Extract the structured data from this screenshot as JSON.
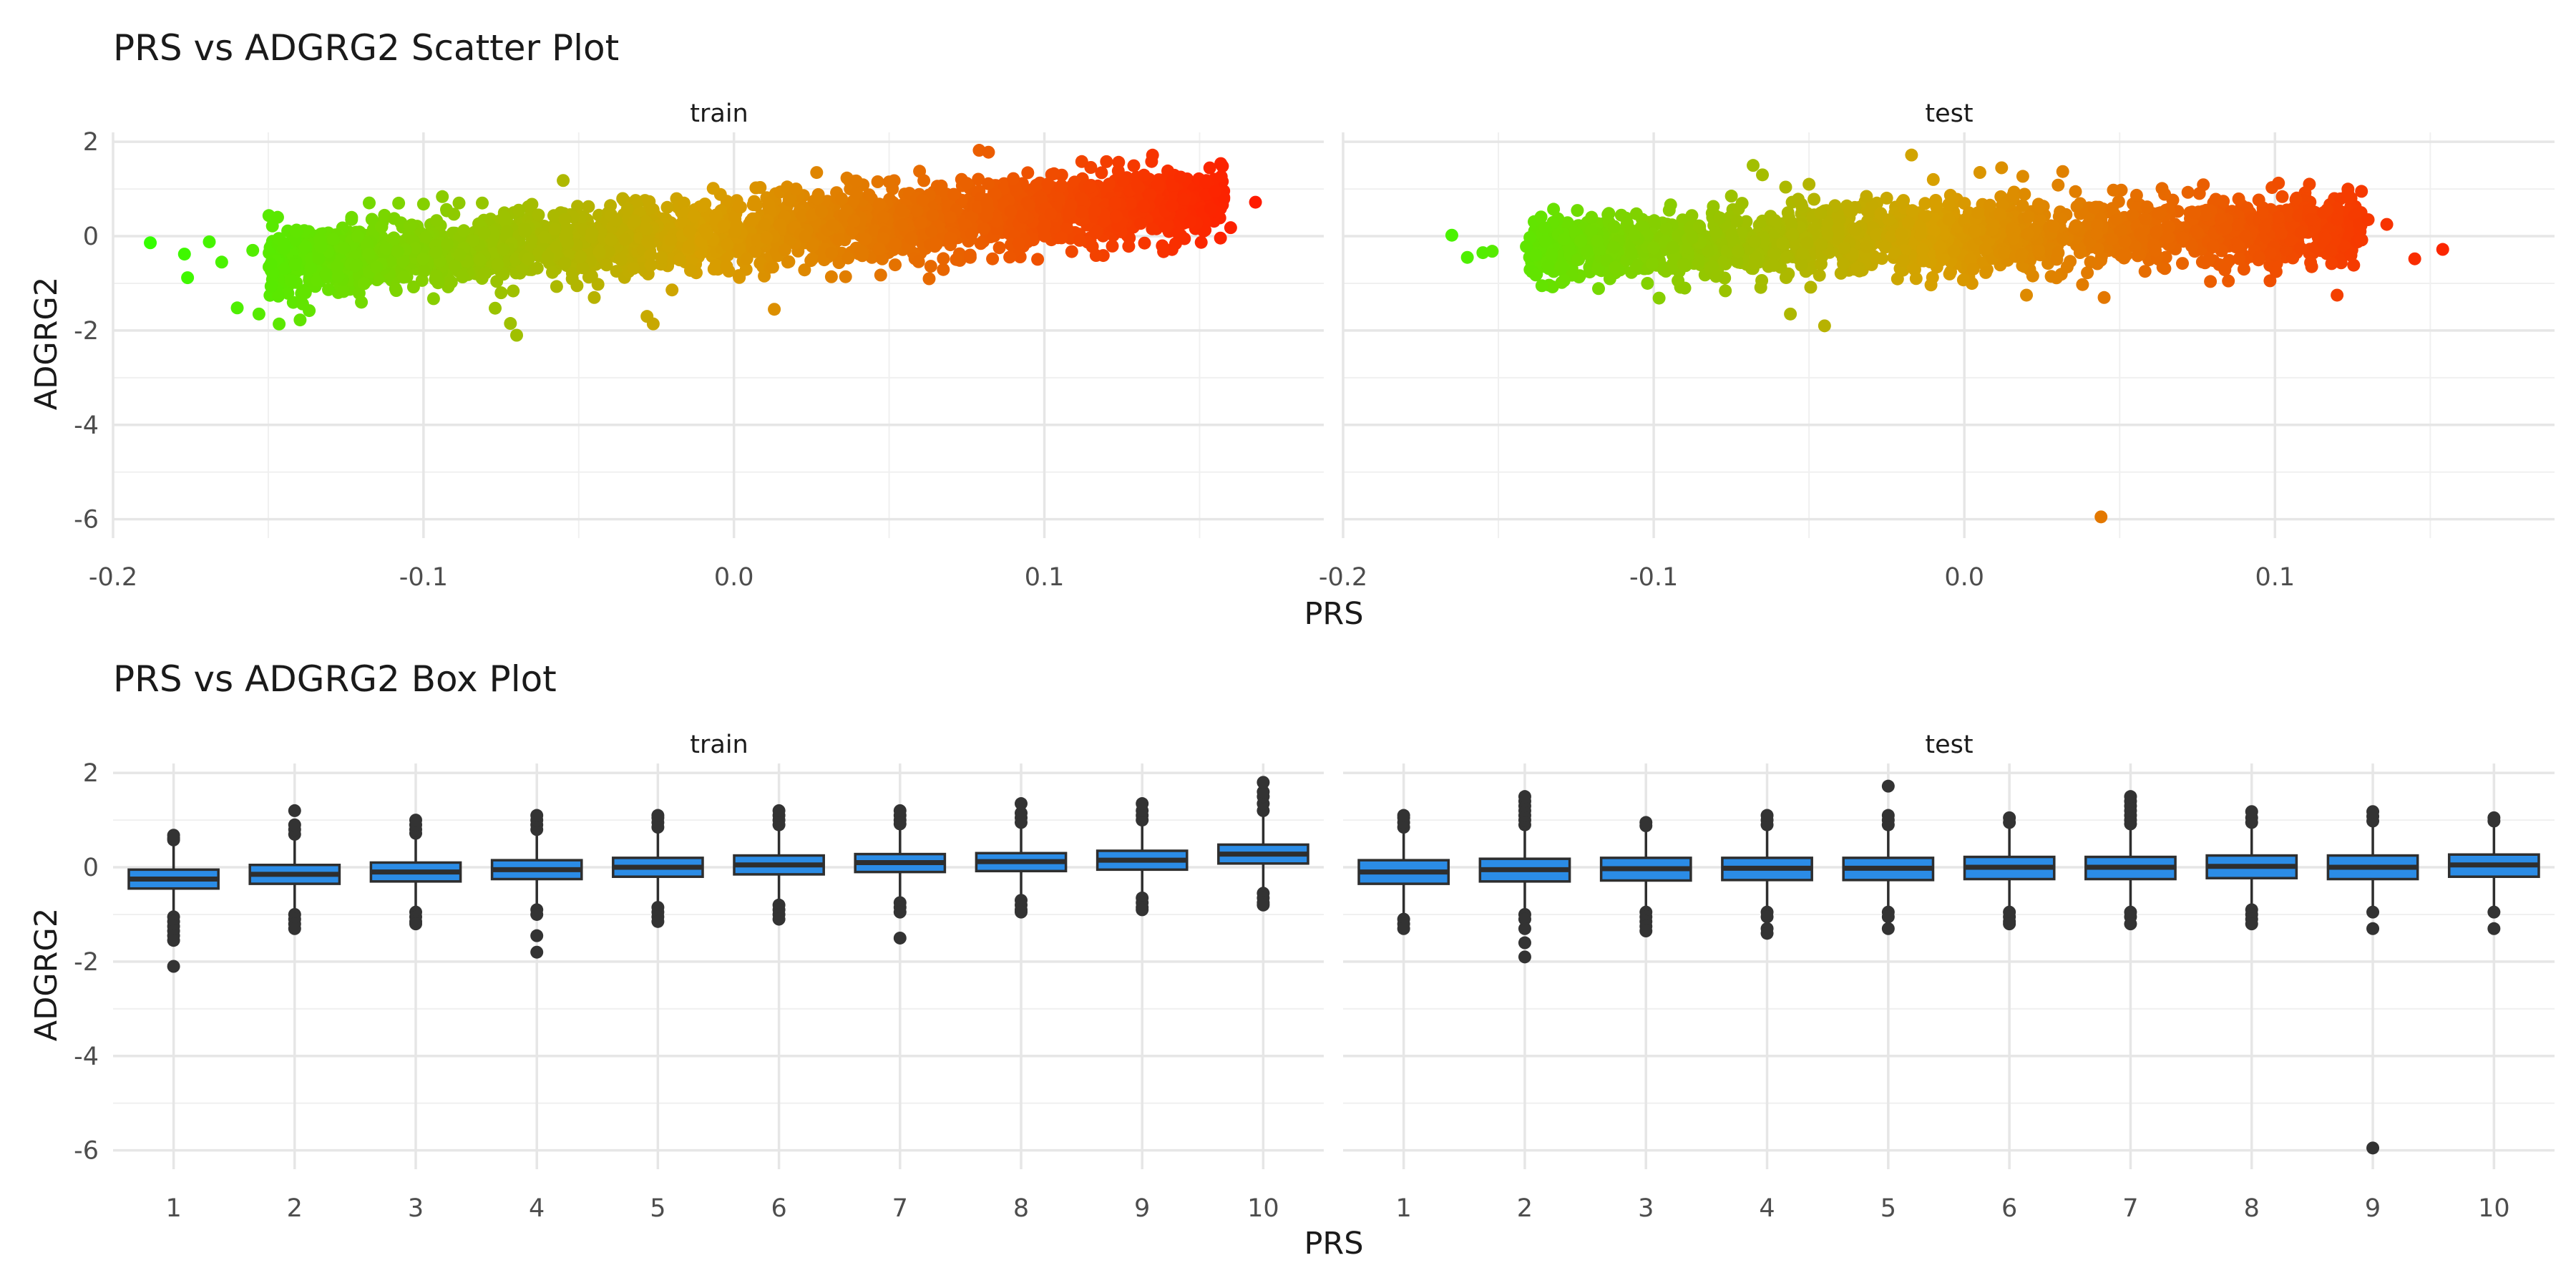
{
  "chart_data": [
    {
      "type": "scatter",
      "title": "PRS vs ADGRG2 Scatter Plot",
      "xlabel": "PRS",
      "ylabel": "ADGRG2",
      "facets": [
        "train",
        "test"
      ],
      "xlim": [
        -0.2,
        0.19
      ],
      "ylim": [
        -6.4,
        2.2
      ],
      "x_ticks": [
        -0.2,
        -0.1,
        0.0,
        0.1
      ],
      "x_tick_labels": [
        "-0.2",
        "-0.1",
        "0.0",
        "0.1"
      ],
      "y_ticks": [
        -6,
        -4,
        -2,
        0,
        2
      ],
      "y_tick_labels": [
        "-6",
        "-4",
        "-2",
        "0",
        "2"
      ],
      "grid": true,
      "legend": "none",
      "color_low": "#33ff00",
      "color_mid": "#d7a000",
      "color_high": "#ff1a00",
      "color_range": [
        -0.19,
        0.17
      ],
      "panels": [
        {
          "facet": "train",
          "points": [
            [
              -0.188,
              -0.14
            ],
            [
              -0.177,
              -0.38
            ],
            [
              -0.176,
              -0.88
            ],
            [
              -0.169,
              -0.12
            ],
            [
              -0.165,
              -0.55
            ],
            [
              -0.16,
              -1.52
            ],
            [
              -0.155,
              -0.3
            ],
            [
              -0.153,
              -1.65
            ],
            [
              -0.147,
              0.4
            ],
            [
              -0.145,
              -0.15
            ],
            [
              -0.12,
              -1.4
            ],
            [
              -0.108,
              0.7
            ],
            [
              -0.1,
              0.68
            ],
            [
              -0.075,
              -1.2
            ],
            [
              -0.072,
              -1.85
            ],
            [
              -0.07,
              -2.1
            ],
            [
              -0.055,
              1.18
            ],
            [
              -0.045,
              -1.3
            ],
            [
              -0.028,
              -1.7
            ],
            [
              -0.026,
              -1.86
            ],
            [
              0.013,
              -1.55
            ],
            [
              0.02,
              1.0
            ],
            [
              0.05,
              1.15
            ],
            [
              0.075,
              1.12
            ],
            [
              0.079,
              1.82
            ],
            [
              0.082,
              1.78
            ],
            [
              0.09,
              1.22
            ],
            [
              0.12,
              1.58
            ],
            [
              0.145,
              0.78
            ],
            [
              0.155,
              0.95
            ],
            [
              0.16,
              0.18
            ],
            [
              0.168,
              0.72
            ]
          ],
          "band": {
            "x_from": -0.15,
            "x_to": 0.158,
            "center_at_left": -0.58,
            "center_slope": 4.3,
            "spread": 0.82,
            "count": 2600
          }
        },
        {
          "facet": "test",
          "points": [
            [
              -0.165,
              0.02
            ],
            [
              -0.16,
              -0.45
            ],
            [
              -0.155,
              -0.35
            ],
            [
              -0.152,
              -0.32
            ],
            [
              -0.141,
              -0.22
            ],
            [
              -0.138,
              -0.4
            ],
            [
              -0.136,
              -1.05
            ],
            [
              -0.13,
              -0.65
            ],
            [
              -0.12,
              0.4
            ],
            [
              -0.102,
              -1.0
            ],
            [
              -0.095,
              0.55
            ],
            [
              -0.09,
              -1.1
            ],
            [
              -0.075,
              0.85
            ],
            [
              -0.068,
              1.5
            ],
            [
              -0.065,
              1.3
            ],
            [
              -0.056,
              -1.65
            ],
            [
              -0.05,
              1.1
            ],
            [
              -0.045,
              -1.9
            ],
            [
              -0.02,
              0.72
            ],
            [
              -0.017,
              1.72
            ],
            [
              -0.01,
              1.2
            ],
            [
              0.005,
              1.35
            ],
            [
              0.012,
              1.45
            ],
            [
              0.02,
              -1.25
            ],
            [
              0.045,
              -1.3
            ],
            [
              0.044,
              -5.95
            ],
            [
              0.085,
              -0.95
            ],
            [
              0.09,
              -0.7
            ],
            [
              0.118,
              -0.3
            ],
            [
              0.12,
              -1.25
            ],
            [
              0.13,
              0.35
            ],
            [
              0.136,
              0.25
            ],
            [
              0.145,
              -0.48
            ],
            [
              0.154,
              -0.28
            ]
          ],
          "band": {
            "x_from": -0.14,
            "x_to": 0.128,
            "center_at_left": -0.28,
            "center_slope": 1.8,
            "spread": 0.78,
            "count": 2000
          }
        }
      ]
    },
    {
      "type": "box",
      "title": "PRS vs ADGRG2 Box Plot",
      "xlabel": "PRS",
      "ylabel": "ADGRG2",
      "facets": [
        "train",
        "test"
      ],
      "categories": [
        "1",
        "2",
        "3",
        "4",
        "5",
        "6",
        "7",
        "8",
        "9",
        "10"
      ],
      "ylim": [
        -6.4,
        2.2
      ],
      "y_ticks": [
        -6,
        -4,
        -2,
        0,
        2
      ],
      "y_tick_labels": [
        "-6",
        "-4",
        "-2",
        "0",
        "2"
      ],
      "grid": true,
      "legend": "none",
      "box_fill": "#2b8ce6",
      "box_line": "#2e2e2e",
      "outlier_color": "#333333",
      "panels": [
        {
          "facet": "train",
          "boxes": [
            {
              "category": "1",
              "lower_whisker": -1.0,
              "q1": -0.45,
              "median": -0.25,
              "q3": -0.05,
              "upper_whisker": 0.55,
              "outliers": [
                0.58,
                0.62,
                0.68,
                -1.05,
                -1.15,
                -1.25,
                -1.35,
                -1.45,
                -1.55,
                -2.1
              ]
            },
            {
              "category": "2",
              "lower_whisker": -0.95,
              "q1": -0.35,
              "median": -0.15,
              "q3": 0.05,
              "upper_whisker": 0.65,
              "outliers": [
                0.7,
                0.8,
                0.9,
                1.2,
                -1.0,
                -1.1,
                -1.2,
                -1.3
              ]
            },
            {
              "category": "3",
              "lower_whisker": -0.9,
              "q1": -0.3,
              "median": -0.1,
              "q3": 0.1,
              "upper_whisker": 0.7,
              "outliers": [
                0.72,
                0.8,
                0.9,
                1.0,
                -0.95,
                -1.05,
                -1.15,
                -1.2
              ]
            },
            {
              "category": "4",
              "lower_whisker": -0.85,
              "q1": -0.25,
              "median": -0.05,
              "q3": 0.15,
              "upper_whisker": 0.75,
              "outliers": [
                0.8,
                0.9,
                1.0,
                1.1,
                -0.9,
                -1.0,
                -1.45,
                -1.8
              ]
            },
            {
              "category": "5",
              "lower_whisker": -0.8,
              "q1": -0.2,
              "median": 0.0,
              "q3": 0.2,
              "upper_whisker": 0.8,
              "outliers": [
                0.85,
                0.95,
                1.05,
                1.1,
                -0.85,
                -0.95,
                -1.05,
                -1.15
              ]
            },
            {
              "category": "6",
              "lower_whisker": -0.75,
              "q1": -0.15,
              "median": 0.05,
              "q3": 0.25,
              "upper_whisker": 0.85,
              "outliers": [
                0.9,
                1.0,
                1.1,
                1.2,
                -0.8,
                -0.9,
                -1.0,
                -1.1
              ]
            },
            {
              "category": "7",
              "lower_whisker": -0.7,
              "q1": -0.1,
              "median": 0.1,
              "q3": 0.28,
              "upper_whisker": 0.88,
              "outliers": [
                0.92,
                1.0,
                1.1,
                1.2,
                -0.75,
                -0.85,
                -0.95,
                -1.5
              ]
            },
            {
              "category": "8",
              "lower_whisker": -0.65,
              "q1": -0.08,
              "median": 0.12,
              "q3": 0.3,
              "upper_whisker": 0.9,
              "outliers": [
                0.95,
                1.05,
                1.15,
                1.35,
                -0.7,
                -0.8,
                -0.9,
                -0.95
              ]
            },
            {
              "category": "9",
              "lower_whisker": -0.6,
              "q1": -0.05,
              "median": 0.15,
              "q3": 0.35,
              "upper_whisker": 0.95,
              "outliers": [
                1.0,
                1.1,
                1.2,
                1.35,
                -0.65,
                -0.75,
                -0.85,
                -0.9
              ]
            },
            {
              "category": "10",
              "lower_whisker": -0.5,
              "q1": 0.08,
              "median": 0.28,
              "q3": 0.48,
              "upper_whisker": 1.1,
              "outliers": [
                1.2,
                1.35,
                1.5,
                1.6,
                1.8,
                -0.55,
                -0.65,
                -0.75,
                -0.8
              ]
            }
          ]
        },
        {
          "facet": "test",
          "boxes": [
            {
              "category": "1",
              "lower_whisker": -1.0,
              "q1": -0.35,
              "median": -0.1,
              "q3": 0.15,
              "upper_whisker": 0.8,
              "outliers": [
                0.85,
                0.95,
                1.05,
                1.1,
                -1.1,
                -1.2,
                -1.3
              ]
            },
            {
              "category": "2",
              "lower_whisker": -0.95,
              "q1": -0.3,
              "median": -0.05,
              "q3": 0.18,
              "upper_whisker": 0.85,
              "outliers": [
                0.9,
                1.0,
                1.1,
                1.2,
                1.3,
                1.4,
                1.5,
                -1.0,
                -1.1,
                -1.3,
                -1.6,
                -1.9
              ]
            },
            {
              "category": "3",
              "lower_whisker": -0.92,
              "q1": -0.28,
              "median": -0.03,
              "q3": 0.2,
              "upper_whisker": 0.85,
              "outliers": [
                0.88,
                0.95,
                -0.95,
                -1.05,
                -1.15,
                -1.25,
                -1.35
              ]
            },
            {
              "category": "4",
              "lower_whisker": -0.92,
              "q1": -0.27,
              "median": -0.02,
              "q3": 0.2,
              "upper_whisker": 0.85,
              "outliers": [
                0.9,
                1.0,
                1.1,
                -0.95,
                -1.05,
                -1.3,
                -1.4
              ]
            },
            {
              "category": "5",
              "lower_whisker": -0.9,
              "q1": -0.27,
              "median": -0.02,
              "q3": 0.2,
              "upper_whisker": 0.85,
              "outliers": [
                0.9,
                1.0,
                1.1,
                1.72,
                -0.95,
                -1.05,
                -1.3
              ]
            },
            {
              "category": "6",
              "lower_whisker": -0.88,
              "q1": -0.25,
              "median": 0.0,
              "q3": 0.22,
              "upper_whisker": 0.88,
              "outliers": [
                0.95,
                1.05,
                -0.95,
                -1.05,
                -1.15,
                -1.2
              ]
            },
            {
              "category": "7",
              "lower_whisker": -0.88,
              "q1": -0.25,
              "median": 0.0,
              "q3": 0.22,
              "upper_whisker": 0.88,
              "outliers": [
                0.92,
                1.0,
                1.1,
                1.2,
                1.3,
                1.4,
                1.5,
                -0.95,
                -1.05,
                -1.2
              ]
            },
            {
              "category": "8",
              "lower_whisker": -0.86,
              "q1": -0.23,
              "median": 0.02,
              "q3": 0.25,
              "upper_whisker": 0.9,
              "outliers": [
                0.95,
                1.05,
                1.18,
                -0.9,
                -1.0,
                -1.1,
                -1.2
              ]
            },
            {
              "category": "9",
              "lower_whisker": -0.88,
              "q1": -0.25,
              "median": 0.0,
              "q3": 0.25,
              "upper_whisker": 0.92,
              "outliers": [
                0.98,
                1.08,
                1.18,
                -0.95,
                -1.3,
                -5.95
              ]
            },
            {
              "category": "10",
              "lower_whisker": -0.85,
              "q1": -0.2,
              "median": 0.05,
              "q3": 0.27,
              "upper_whisker": 0.92,
              "outliers": [
                0.98,
                1.05,
                -0.95,
                -1.3
              ]
            }
          ]
        }
      ]
    }
  ]
}
